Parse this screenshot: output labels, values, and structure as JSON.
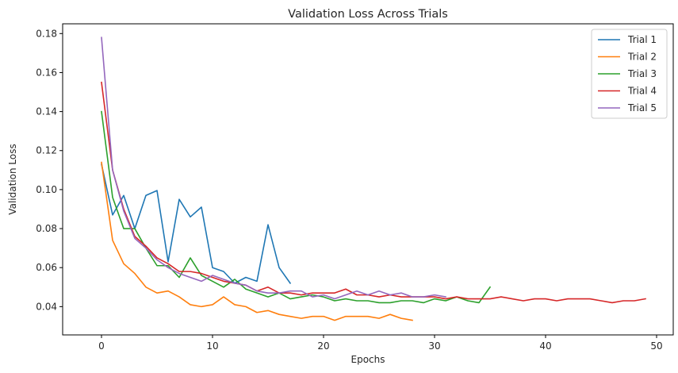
{
  "chart_data": {
    "type": "line",
    "title": "Validation Loss Across Trials",
    "xlabel": "Epochs",
    "ylabel": "Validation Loss",
    "xlim": [
      -3.5,
      51.5
    ],
    "ylim": [
      0.0255,
      0.185
    ],
    "xticks": [
      0,
      10,
      20,
      30,
      40,
      50
    ],
    "xtick_labels": [
      "0",
      "10",
      "20",
      "30",
      "40",
      "50"
    ],
    "yticks": [
      0.04,
      0.06,
      0.08,
      0.1,
      0.12,
      0.14,
      0.16,
      0.18
    ],
    "ytick_labels": [
      "0.04",
      "0.06",
      "0.08",
      "0.10",
      "0.12",
      "0.14",
      "0.16",
      "0.18"
    ],
    "grid": false,
    "legend_position": "top-right",
    "series": [
      {
        "name": "Trial 1",
        "color": "#1f77b4",
        "values": [
          0.113,
          0.087,
          0.097,
          0.08,
          0.097,
          0.0995,
          0.063,
          0.095,
          0.086,
          0.091,
          0.06,
          0.058,
          0.052,
          0.055,
          0.053,
          0.082,
          0.06,
          0.052
        ]
      },
      {
        "name": "Trial 2",
        "color": "#ff7f0e",
        "values": [
          0.114,
          0.074,
          0.062,
          0.057,
          0.05,
          0.047,
          0.048,
          0.045,
          0.041,
          0.04,
          0.041,
          0.045,
          0.041,
          0.04,
          0.037,
          0.038,
          0.036,
          0.035,
          0.034,
          0.035,
          0.035,
          0.033,
          0.035,
          0.035,
          0.035,
          0.034,
          0.036,
          0.034,
          0.033
        ]
      },
      {
        "name": "Trial 3",
        "color": "#2ca02c",
        "values": [
          0.14,
          0.096,
          0.08,
          0.08,
          0.07,
          0.061,
          0.061,
          0.055,
          0.065,
          0.056,
          0.053,
          0.05,
          0.054,
          0.049,
          0.047,
          0.045,
          0.047,
          0.044,
          0.045,
          0.046,
          0.045,
          0.043,
          0.044,
          0.043,
          0.043,
          0.042,
          0.042,
          0.043,
          0.043,
          0.042,
          0.044,
          0.043,
          0.045,
          0.043,
          0.042,
          0.05
        ]
      },
      {
        "name": "Trial 4",
        "color": "#d62728",
        "values": [
          0.155,
          0.11,
          0.09,
          0.076,
          0.071,
          0.065,
          0.062,
          0.058,
          0.058,
          0.057,
          0.055,
          0.053,
          0.052,
          0.051,
          0.048,
          0.05,
          0.047,
          0.047,
          0.046,
          0.047,
          0.047,
          0.047,
          0.049,
          0.046,
          0.046,
          0.045,
          0.046,
          0.045,
          0.045,
          0.045,
          0.045,
          0.044,
          0.045,
          0.044,
          0.044,
          0.044,
          0.045,
          0.044,
          0.043,
          0.044,
          0.044,
          0.043,
          0.044,
          0.044,
          0.044,
          0.043,
          0.042,
          0.043,
          0.043,
          0.044
        ]
      },
      {
        "name": "Trial 5",
        "color": "#9467bd",
        "values": [
          0.178,
          0.11,
          0.089,
          0.075,
          0.07,
          0.064,
          0.06,
          0.057,
          0.055,
          0.053,
          0.056,
          0.054,
          0.052,
          0.051,
          0.048,
          0.047,
          0.047,
          0.048,
          0.048,
          0.045,
          0.046,
          0.044,
          0.046,
          0.048,
          0.046,
          0.048,
          0.046,
          0.047,
          0.045,
          0.045,
          0.046,
          0.045
        ]
      }
    ]
  }
}
